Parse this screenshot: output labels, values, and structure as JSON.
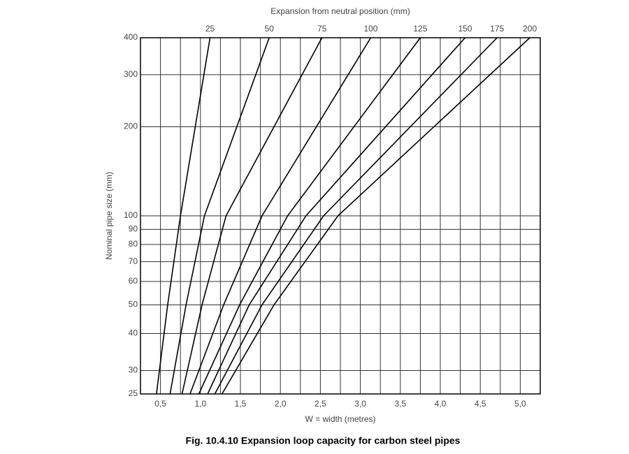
{
  "chart_data": {
    "type": "line",
    "top_label": "Expansion from neutral position (mm)",
    "xlabel": "W = width (metres)",
    "ylabel": "Nominal pipe size (mm)",
    "caption": "Fig. 10.4.10 Expansion loop capacity for carbon steel pipes",
    "xlim": [
      0.25,
      5.25
    ],
    "ylim": [
      25,
      400
    ],
    "yscale": "log",
    "grid": true,
    "color": "#000000",
    "xticks": [
      {
        "value": 0.5,
        "label": "0,5"
      },
      {
        "value": 1.0,
        "label": "1,0"
      },
      {
        "value": 1.5,
        "label": "1,5"
      },
      {
        "value": 2.0,
        "label": "2,0"
      },
      {
        "value": 2.5,
        "label": "2,5"
      },
      {
        "value": 3.0,
        "label": "3,0"
      },
      {
        "value": 3.5,
        "label": "3,5"
      },
      {
        "value": 4.0,
        "label": "4,0"
      },
      {
        "value": 4.5,
        "label": "4,5"
      },
      {
        "value": 5.0,
        "label": "5,0"
      }
    ],
    "xminorticks": [
      0.75,
      1.25,
      1.75,
      2.25,
      2.75,
      3.25,
      3.75,
      4.25,
      4.75
    ],
    "yticks": [
      25,
      30,
      40,
      50,
      60,
      70,
      80,
      90,
      100,
      200,
      300,
      400
    ],
    "series": [
      {
        "name": "25",
        "x": [
          0.45,
          0.59,
          0.75,
          1.12
        ],
        "values": [
          25,
          50,
          100,
          400
        ]
      },
      {
        "name": "50",
        "x": [
          0.62,
          0.82,
          1.05,
          1.86
        ],
        "values": [
          25,
          50,
          100,
          400
        ]
      },
      {
        "name": "75",
        "x": [
          0.77,
          1.02,
          1.32,
          2.52
        ],
        "values": [
          25,
          50,
          100,
          400
        ]
      },
      {
        "name": "100",
        "x": [
          0.87,
          1.29,
          1.77,
          3.13
        ],
        "values": [
          25,
          50,
          100,
          400
        ]
      },
      {
        "name": "125",
        "x": [
          0.98,
          1.49,
          2.09,
          3.75
        ],
        "values": [
          25,
          50,
          100,
          400
        ]
      },
      {
        "name": "150",
        "x": [
          1.09,
          1.61,
          2.32,
          4.31
        ],
        "values": [
          25,
          50,
          100,
          400
        ]
      },
      {
        "name": "175",
        "x": [
          1.18,
          1.77,
          2.54,
          4.71
        ],
        "values": [
          25,
          50,
          100,
          400
        ]
      },
      {
        "name": "200",
        "x": [
          1.27,
          1.92,
          2.72,
          5.12
        ],
        "values": [
          25,
          50,
          100,
          400
        ]
      }
    ]
  }
}
